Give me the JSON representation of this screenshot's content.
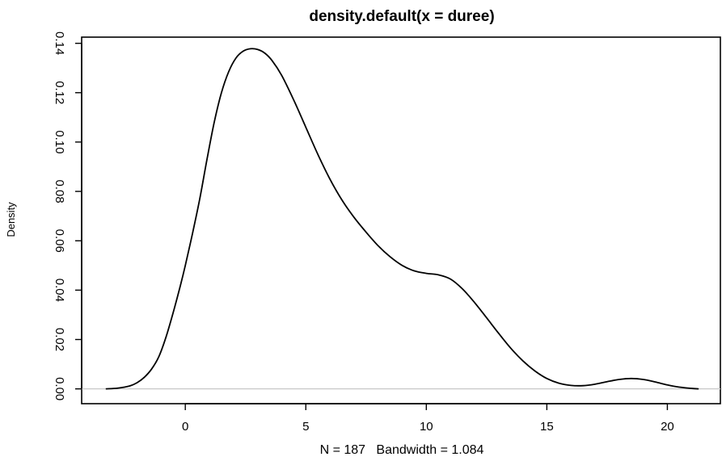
{
  "chart_data": {
    "type": "line",
    "title": "density.default(x = duree)",
    "xlabel": "N = 187   Bandwidth = 1.084",
    "ylabel": "Density",
    "xlim": [
      -4.3,
      22.2
    ],
    "ylim": [
      -0.006,
      0.1425
    ],
    "x_ticks": [
      0,
      5,
      10,
      15,
      20
    ],
    "x_tick_labels": [
      "0",
      "5",
      "10",
      "15",
      "20"
    ],
    "y_ticks": [
      0.0,
      0.02,
      0.04,
      0.06,
      0.08,
      0.1,
      0.12,
      0.14
    ],
    "y_tick_labels": [
      "0.00",
      "0.02",
      "0.04",
      "0.06",
      "0.08",
      "0.10",
      "0.12",
      "0.14"
    ],
    "grid": false,
    "baseline": 0,
    "series": [
      {
        "color": "#000000",
        "x": [
          -3.3,
          -2.8,
          -2.3,
          -2.0,
          -1.7,
          -1.4,
          -1.1,
          -0.8,
          -0.5,
          -0.2,
          0.0,
          0.3,
          0.6,
          0.9,
          1.2,
          1.5,
          1.8,
          2.1,
          2.4,
          2.7,
          3.0,
          3.3,
          3.6,
          4.0,
          4.5,
          5.0,
          5.5,
          6.0,
          6.5,
          7.0,
          7.5,
          8.0,
          8.5,
          9.0,
          9.5,
          10.0,
          10.5,
          11.0,
          11.5,
          12.0,
          12.5,
          13.0,
          13.5,
          14.0,
          14.5,
          15.0,
          15.5,
          16.0,
          16.5,
          17.0,
          17.5,
          18.0,
          18.5,
          19.0,
          19.5,
          20.0,
          20.5,
          21.0,
          21.3
        ],
        "y": [
          0.0,
          0.0003,
          0.0012,
          0.0025,
          0.0047,
          0.008,
          0.013,
          0.021,
          0.031,
          0.042,
          0.05,
          0.063,
          0.077,
          0.093,
          0.108,
          0.12,
          0.1285,
          0.134,
          0.1368,
          0.1378,
          0.1375,
          0.136,
          0.133,
          0.127,
          0.117,
          0.106,
          0.095,
          0.085,
          0.0765,
          0.0695,
          0.0635,
          0.058,
          0.0535,
          0.05,
          0.0478,
          0.0468,
          0.0462,
          0.0445,
          0.0405,
          0.035,
          0.0288,
          0.0225,
          0.0165,
          0.0114,
          0.0073,
          0.0042,
          0.0023,
          0.0014,
          0.0013,
          0.0019,
          0.0029,
          0.0038,
          0.0042,
          0.0038,
          0.0028,
          0.0016,
          0.0007,
          0.0002,
          0.0
        ]
      }
    ]
  }
}
